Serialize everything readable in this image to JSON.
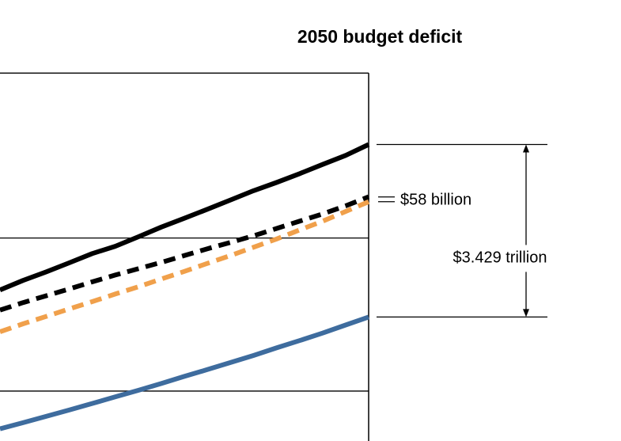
{
  "chart_data": {
    "type": "line",
    "title": "2050 budget deficit",
    "xlabel": "",
    "ylabel": "",
    "x": [
      0,
      1,
      2,
      3,
      4,
      5,
      6,
      7,
      8,
      9,
      10,
      11,
      12,
      13,
      14,
      15,
      16
    ],
    "series": [
      {
        "style": "solid",
        "color": "#000000",
        "values": [
          0.62,
          0.659,
          0.694,
          0.731,
          0.769,
          0.799,
          0.838,
          0.878,
          0.914,
          0.951,
          0.989,
          1.027,
          1.061,
          1.097,
          1.135,
          1.172,
          1.217
        ]
      },
      {
        "style": "dashed",
        "color": "#000000",
        "values": [
          0.537,
          0.568,
          0.596,
          0.624,
          0.653,
          0.681,
          0.707,
          0.733,
          0.761,
          0.789,
          0.815,
          0.842,
          0.872,
          0.902,
          0.932,
          0.965,
          1.002
        ]
      },
      {
        "style": "dashed",
        "color": "#F0A04B",
        "values": [
          0.448,
          0.481,
          0.511,
          0.542,
          0.572,
          0.603,
          0.633,
          0.665,
          0.696,
          0.729,
          0.761,
          0.795,
          0.829,
          0.866,
          0.902,
          0.942,
          0.982
        ]
      },
      {
        "style": "solid",
        "color": "#3E6C9E",
        "values": [
          0.05,
          0.075,
          0.101,
          0.127,
          0.154,
          0.181,
          0.208,
          0.236,
          0.265,
          0.293,
          0.322,
          0.351,
          0.382,
          0.412,
          0.443,
          0.476,
          0.509
        ]
      }
    ],
    "ylim": [
      0,
      1.55
    ],
    "gridlines": [
      0.205,
      0.833,
      1.51
    ],
    "annotations": {
      "difference_small": "$58 billion",
      "difference_large": "$3.429 trillion"
    }
  }
}
